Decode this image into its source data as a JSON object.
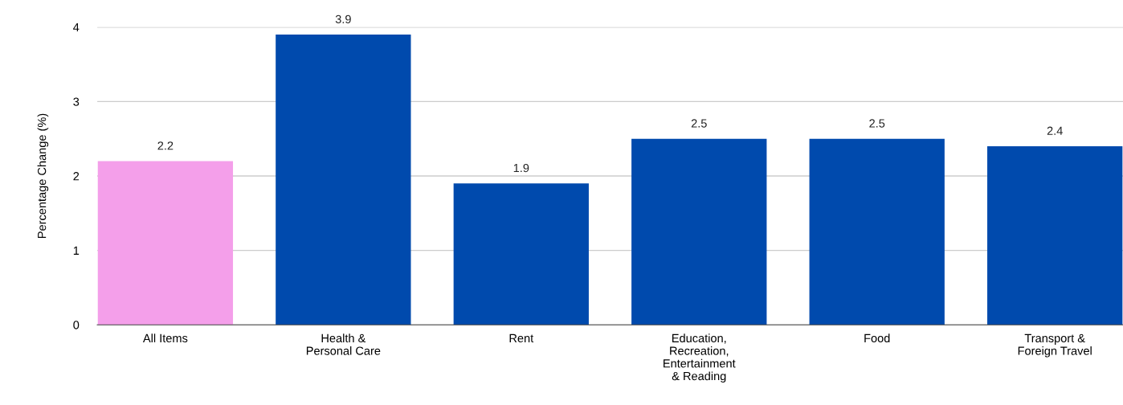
{
  "chart_data": {
    "type": "bar",
    "ylabel": "Percentage Change (%)",
    "categories": [
      "All Items",
      "Health &\nPersonal Care",
      "Rent",
      "Education,\nRecreation,\nEntertainment\n& Reading",
      "Food",
      "Transport &\nForeign Travel"
    ],
    "values": [
      2.2,
      3.9,
      1.9,
      2.5,
      2.5,
      2.4
    ],
    "colors": [
      "#f49fea",
      "#004aad",
      "#004aad",
      "#004aad",
      "#004aad",
      "#004aad"
    ],
    "ylim": [
      0,
      4
    ],
    "yticks": [
      0,
      1,
      2,
      3,
      4
    ],
    "grid": "y",
    "data_labels": true
  }
}
